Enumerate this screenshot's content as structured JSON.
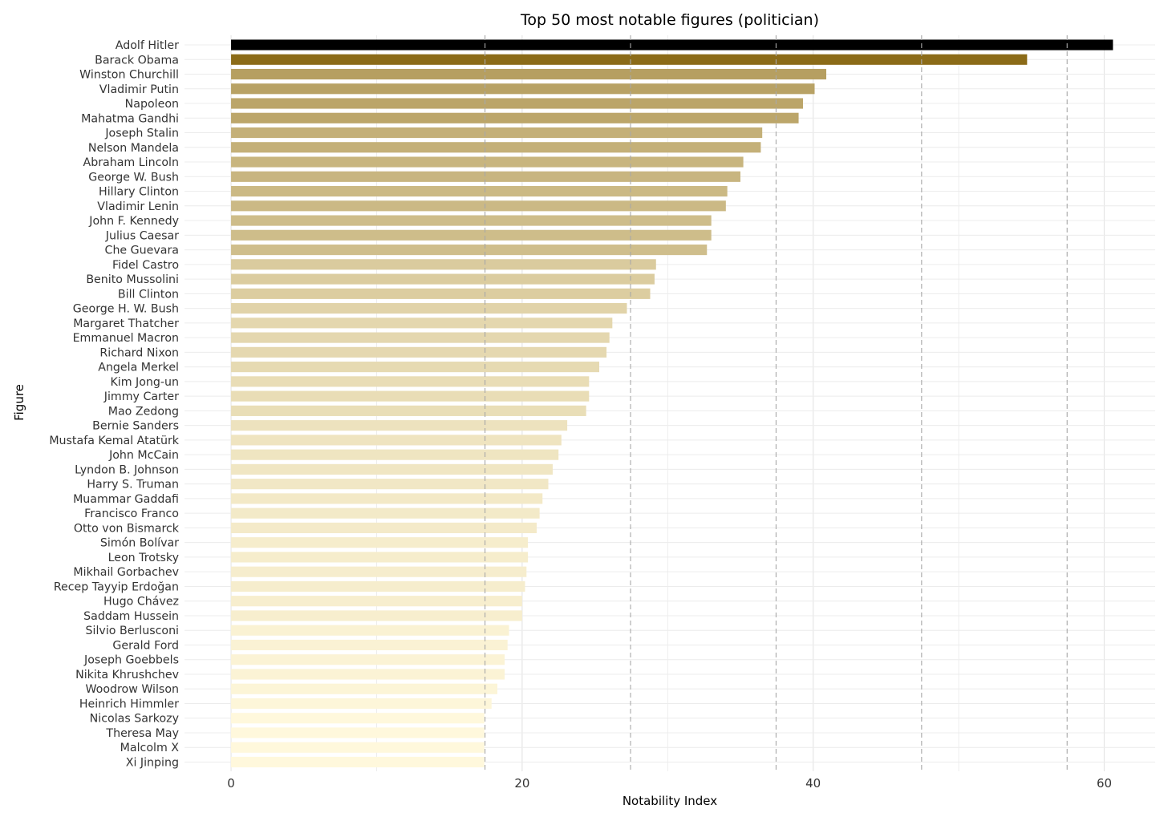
{
  "chart_data": {
    "type": "bar",
    "orientation": "horizontal",
    "title": "Top 50 most notable figures (politician)",
    "xlabel": "Notability Index",
    "ylabel": "Figure",
    "xlim": [
      -3.2,
      63.5
    ],
    "x_ticks": [
      0,
      20,
      40,
      60
    ],
    "x_tick_labels": [
      "0",
      "20",
      "40",
      "60"
    ],
    "grid": true,
    "reference_lines": [
      17.45,
      27.45,
      37.45,
      47.45,
      57.45
    ],
    "color_high": "#000000",
    "color_gradient_dark": "#8B6B18",
    "color_gradient_light": "#FFF8DC",
    "categories": [
      "Adolf Hitler",
      "Barack Obama",
      "Winston Churchill",
      "Vladimir Putin",
      "Napoleon",
      "Mahatma Gandhi",
      "Joseph Stalin",
      "Nelson Mandela",
      "Abraham Lincoln",
      "George W. Bush",
      "Hillary Clinton",
      "Vladimir Lenin",
      "John F. Kennedy",
      "Julius Caesar",
      "Che Guevara",
      "Fidel Castro",
      "Benito Mussolini",
      "Bill Clinton",
      "George H. W. Bush",
      "Margaret Thatcher",
      "Emmanuel Macron",
      "Richard Nixon",
      "Angela Merkel",
      "Kim Jong-un",
      "Jimmy Carter",
      "Mao Zedong",
      "Bernie Sanders",
      "Mustafa Kemal Atatürk",
      "John McCain",
      "Lyndon B. Johnson",
      "Harry S. Truman",
      "Muammar Gaddafi",
      "Francisco Franco",
      "Otto von Bismarck",
      "Simón Bolívar",
      "Leon Trotsky",
      "Mikhail Gorbachev",
      "Recep Tayyip Erdoğan",
      "Hugo Chávez",
      "Saddam Hussein",
      "Silvio Berlusconi",
      "Gerald Ford",
      "Joseph Goebbels",
      "Nikita Khrushchev",
      "Woodrow Wilson",
      "Heinrich Himmler",
      "Nicolas Sarkozy",
      "Theresa May",
      "Malcolm X",
      "Xi Jinping"
    ],
    "values": [
      60.6,
      54.7,
      40.9,
      40.1,
      39.3,
      39.0,
      36.5,
      36.4,
      35.2,
      35.0,
      34.1,
      34.0,
      33.0,
      33.0,
      32.7,
      29.2,
      29.1,
      28.8,
      27.2,
      26.2,
      26.0,
      25.8,
      25.3,
      24.6,
      24.6,
      24.4,
      23.1,
      22.7,
      22.5,
      22.1,
      21.8,
      21.4,
      21.2,
      21.0,
      20.4,
      20.4,
      20.3,
      20.2,
      20.0,
      20.0,
      19.1,
      19.0,
      18.8,
      18.8,
      18.3,
      17.9,
      17.4,
      17.4,
      17.4,
      17.4
    ]
  }
}
